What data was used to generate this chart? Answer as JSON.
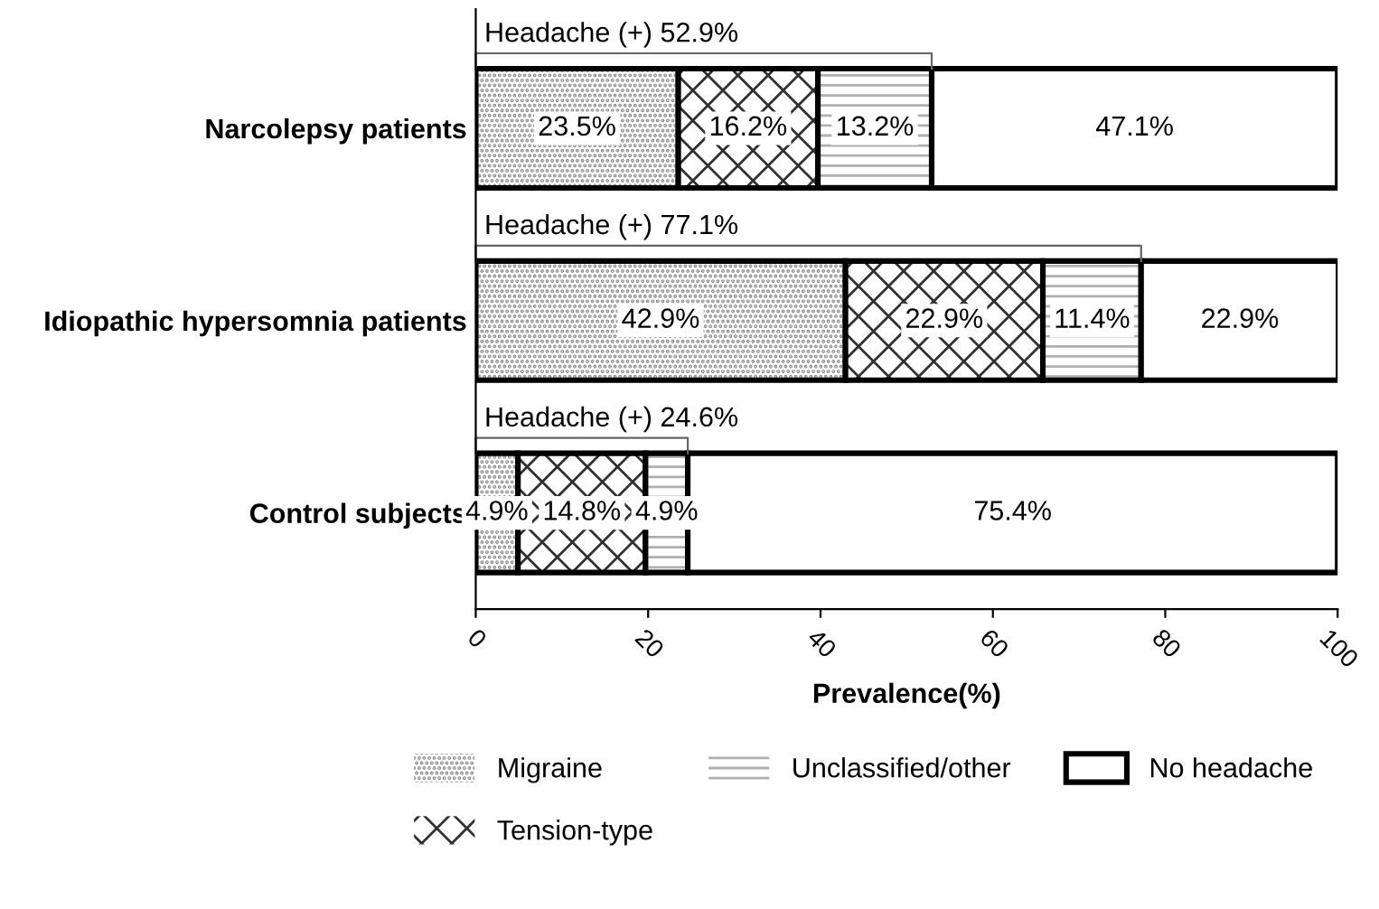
{
  "chart_data": {
    "type": "bar",
    "orientation": "horizontal",
    "stacked": true,
    "xlabel": "Prevalence(%)",
    "categories": [
      "Narcolepsy patients",
      "Idiopathic hypersomnia patients",
      "Control subjects"
    ],
    "series": [
      {
        "name": "Migraine",
        "color": "#8c8c8c",
        "values": [
          23.5,
          42.9,
          4.9
        ],
        "value_labels": [
          "23.5%",
          "42.9%",
          "4.9%"
        ]
      },
      {
        "name": "Tension-type",
        "color": "#303030",
        "values": [
          16.2,
          22.9,
          14.8
        ],
        "value_labels": [
          "16.2%",
          "22.9%",
          "14.8%"
        ]
      },
      {
        "name": "Unclassified/other",
        "color": "#b0b0b0",
        "values": [
          13.2,
          11.4,
          4.9
        ],
        "value_labels": [
          "13.2%",
          "11.4%",
          "4.9%"
        ]
      },
      {
        "name": "No headache",
        "color": "#ffffff",
        "values": [
          47.1,
          22.9,
          75.4
        ],
        "value_labels": [
          "47.1%",
          "22.9%",
          "75.4%"
        ]
      }
    ],
    "annotations": [
      "Headache (+) 52.9%",
      "Headache (+) 77.1%",
      "Headache (+) 24.6%"
    ],
    "xlim": [
      0,
      100
    ],
    "xticks": [
      0,
      20,
      40,
      60,
      80,
      100
    ],
    "grid": false,
    "legend": "bottom"
  }
}
